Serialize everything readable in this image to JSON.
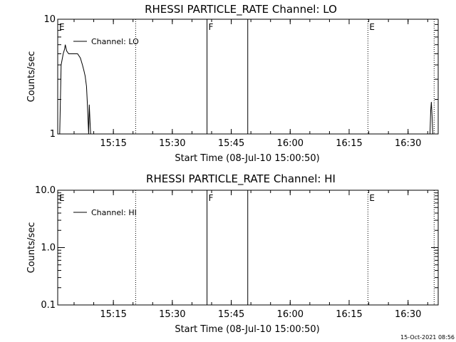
{
  "footer": {
    "timestamp": "15-Oct-2021 08:56"
  },
  "chart_data": [
    {
      "type": "line",
      "title": "RHESSI PARTICLE_RATE Channel: LO",
      "xlabel": "Start Time (08-Jul-10 15:00:50)",
      "ylabel": "Counts/sec",
      "y_scale": "log",
      "ylim": [
        1,
        10
      ],
      "y_ticks": [
        {
          "value": 1,
          "label": "1"
        },
        {
          "value": 10,
          "label": "10"
        }
      ],
      "xlim": [
        "15:00:50",
        "16:37:40"
      ],
      "x_ticks": [
        {
          "value": "15:15",
          "label": "15:15"
        },
        {
          "value": "15:30",
          "label": "15:30"
        },
        {
          "value": "15:45",
          "label": "15:45"
        },
        {
          "value": "16:00",
          "label": "16:00"
        },
        {
          "value": "16:15",
          "label": "16:15"
        },
        {
          "value": "16:30",
          "label": "16:30"
        }
      ],
      "legend": {
        "position": "top-left",
        "entries": [
          "Channel: LO"
        ]
      },
      "series": [
        {
          "name": "Channel: LO",
          "x": [
            "15:00:50",
            "15:01:21",
            "15:01:42",
            "15:02:14",
            "15:02:35",
            "15:02:45",
            "15:03:06",
            "15:03:38",
            "15:03:59",
            "15:04:41",
            "15:05:12",
            "15:05:54",
            "15:06:36",
            "15:07:07",
            "15:07:28",
            "15:07:49",
            "15:08:10",
            "15:08:21",
            "15:08:31",
            "15:08:42",
            "15:08:52",
            "15:09:03",
            "15:09:13"
          ],
          "y": [
            1.0,
            1.0,
            4.0,
            5.0,
            5.5,
            6.0,
            5.3,
            5.0,
            5.0,
            5.0,
            5.0,
            5.0,
            4.6,
            4.0,
            3.6,
            3.2,
            2.6,
            1.9,
            1.4,
            1.0,
            1.8,
            1.3,
            1.0
          ]
        },
        {
          "name": "Channel: LO",
          "x": [
            "16:35:35",
            "16:35:46",
            "16:35:56",
            "16:36:07",
            "16:36:17"
          ],
          "y": [
            1.0,
            1.6,
            1.9,
            1.4,
            1.0
          ]
        }
      ],
      "markers": [
        {
          "time": "15:00:50",
          "style": "none",
          "label": "E"
        },
        {
          "time": "15:20:40",
          "style": "dotted",
          "label": ""
        },
        {
          "time": "15:38:50",
          "style": "solid",
          "label": "F"
        },
        {
          "time": "15:49:12",
          "style": "solid",
          "label": ""
        },
        {
          "time": "16:19:47",
          "style": "dotted",
          "label": "E"
        },
        {
          "time": "16:36:38",
          "style": "dotted",
          "label": ""
        }
      ]
    },
    {
      "type": "line",
      "title": "RHESSI PARTICLE_RATE Channel: HI",
      "xlabel": "Start Time (08-Jul-10 15:00:50)",
      "ylabel": "Counts/sec",
      "y_scale": "log",
      "ylim": [
        0.1,
        10
      ],
      "y_ticks": [
        {
          "value": 0.1,
          "label": "0.1"
        },
        {
          "value": 1,
          "label": "1.0"
        },
        {
          "value": 10,
          "label": "10.0"
        }
      ],
      "xlim": [
        "15:00:50",
        "16:37:40"
      ],
      "x_ticks": [
        {
          "value": "15:15",
          "label": "15:15"
        },
        {
          "value": "15:30",
          "label": "15:30"
        },
        {
          "value": "15:45",
          "label": "15:45"
        },
        {
          "value": "16:00",
          "label": "16:00"
        },
        {
          "value": "16:15",
          "label": "16:15"
        },
        {
          "value": "16:30",
          "label": "16:30"
        }
      ],
      "legend": {
        "position": "top-left",
        "entries": [
          "Channel: HI"
        ]
      },
      "series": [],
      "markers": [
        {
          "time": "15:00:50",
          "style": "none",
          "label": "E"
        },
        {
          "time": "15:20:40",
          "style": "dotted",
          "label": ""
        },
        {
          "time": "15:38:50",
          "style": "solid",
          "label": "F"
        },
        {
          "time": "15:49:12",
          "style": "solid",
          "label": ""
        },
        {
          "time": "16:19:47",
          "style": "dotted",
          "label": "E"
        },
        {
          "time": "16:36:38",
          "style": "dotted",
          "label": ""
        }
      ]
    }
  ]
}
